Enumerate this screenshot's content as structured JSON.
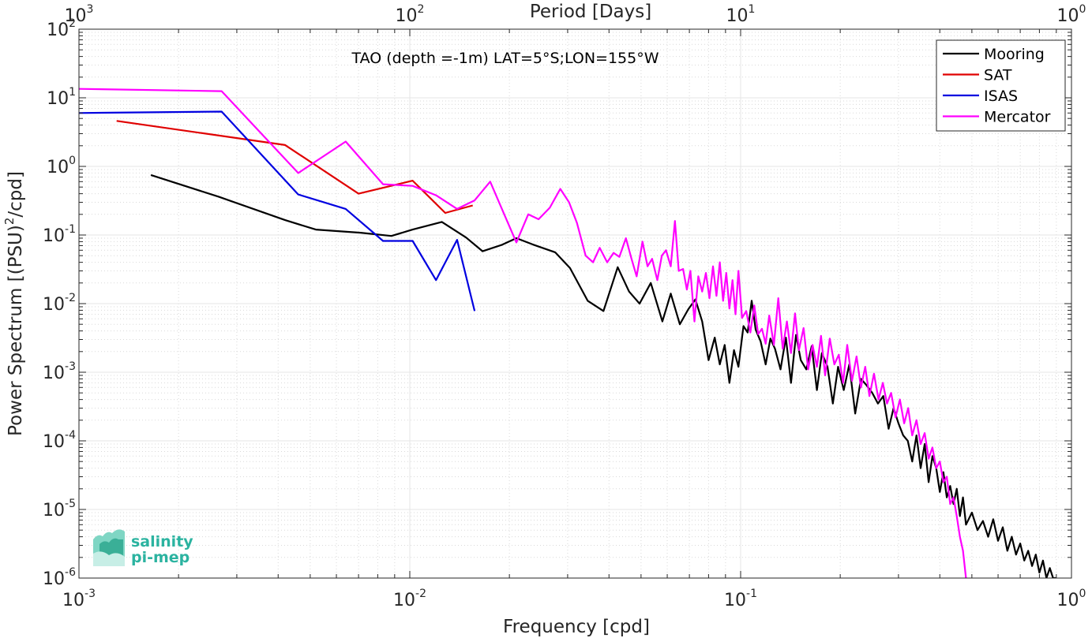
{
  "chart_data": {
    "type": "line",
    "title": "TAO (depth =-1m) LAT=5°S;LON=155°W",
    "xlabel": "Frequency [cpd]",
    "ylabel": "Power Spectrum [(PSU)",
    "ylabel_sup": "2",
    "ylabel_tail": "/cpd]",
    "top_xlabel": "Period [Days]",
    "x_scale": "log",
    "y_scale": "log",
    "xlim": [
      0.001,
      1
    ],
    "ylim": [
      1e-06,
      100
    ],
    "grid": true,
    "legend_position": "top-right",
    "x_ticks": [
      {
        "base": "10",
        "exp": "-3",
        "value": 0.001
      },
      {
        "base": "10",
        "exp": "-2",
        "value": 0.01
      },
      {
        "base": "10",
        "exp": "-1",
        "value": 0.1
      },
      {
        "base": "10",
        "exp": "0",
        "value": 1
      }
    ],
    "top_ticks": [
      {
        "base": "10",
        "exp": "3",
        "value": 0.001
      },
      {
        "base": "10",
        "exp": "2",
        "value": 0.01
      },
      {
        "base": "10",
        "exp": "1",
        "value": 0.1
      },
      {
        "base": "10",
        "exp": "0",
        "value": 1
      }
    ],
    "y_ticks": [
      {
        "base": "10",
        "exp": "2",
        "value": 100
      },
      {
        "base": "10",
        "exp": "1",
        "value": 10
      },
      {
        "base": "10",
        "exp": "0",
        "value": 1
      },
      {
        "base": "10",
        "exp": "-1",
        "value": 0.1
      },
      {
        "base": "10",
        "exp": "-2",
        "value": 0.01
      },
      {
        "base": "10",
        "exp": "-3",
        "value": 0.001
      },
      {
        "base": "10",
        "exp": "-4",
        "value": 0.0001
      },
      {
        "base": "10",
        "exp": "-5",
        "value": 1e-05
      },
      {
        "base": "10",
        "exp": "-6",
        "value": 1e-06
      }
    ],
    "series": [
      {
        "name": "Mooring",
        "color": "#000000",
        "x": [
          0.00165,
          0.00265,
          0.0042,
          0.0052,
          0.0071,
          0.0088,
          0.0102,
          0.0125,
          0.0148,
          0.0166,
          0.019,
          0.021,
          0.0235,
          0.0275,
          0.0305,
          0.0345,
          0.0385,
          0.0425,
          0.046,
          0.0495,
          0.0535,
          0.058,
          0.0615,
          0.0655,
          0.0695,
          0.073,
          0.0765,
          0.08,
          0.0835,
          0.0865,
          0.0895,
          0.0925,
          0.0955,
          0.0985,
          0.102,
          0.105,
          0.108,
          0.111,
          0.115,
          0.119,
          0.123,
          0.127,
          0.132,
          0.137,
          0.142,
          0.147,
          0.152,
          0.158,
          0.164,
          0.17,
          0.176,
          0.183,
          0.19,
          0.197,
          0.205,
          0.213,
          0.222,
          0.231,
          0.24,
          0.25,
          0.26,
          0.27,
          0.28,
          0.29,
          0.3,
          0.31,
          0.32,
          0.33,
          0.34,
          0.35,
          0.36,
          0.37,
          0.38,
          0.39,
          0.4,
          0.41,
          0.42,
          0.43,
          0.44,
          0.45,
          0.46,
          0.47,
          0.48,
          0.5,
          0.52,
          0.54,
          0.56,
          0.58,
          0.6,
          0.62,
          0.64,
          0.66,
          0.68,
          0.7,
          0.72,
          0.74,
          0.76,
          0.78,
          0.8,
          0.82,
          0.84,
          0.86,
          0.88,
          0.9
        ],
        "y": [
          0.75,
          0.36,
          0.165,
          0.12,
          0.108,
          0.097,
          0.12,
          0.155,
          0.092,
          0.058,
          0.072,
          0.09,
          0.073,
          0.056,
          0.033,
          0.011,
          0.0078,
          0.034,
          0.015,
          0.01,
          0.02,
          0.0055,
          0.014,
          0.005,
          0.0083,
          0.0115,
          0.0055,
          0.0015,
          0.0032,
          0.0013,
          0.0025,
          0.0007,
          0.0021,
          0.0012,
          0.0047,
          0.0038,
          0.011,
          0.0042,
          0.0028,
          0.0013,
          0.0031,
          0.0022,
          0.0011,
          0.0032,
          0.0007,
          0.0035,
          0.0015,
          0.0011,
          0.0024,
          0.00055,
          0.0019,
          0.0012,
          0.00035,
          0.0012,
          0.00055,
          0.0013,
          0.00025,
          0.0008,
          0.00065,
          0.0005,
          0.00035,
          0.00045,
          0.00015,
          0.0003,
          0.00018,
          0.00012,
          0.0001,
          5e-05,
          0.00012,
          4e-05,
          9e-05,
          2.5e-05,
          6e-05,
          4e-05,
          1.8e-05,
          3.5e-05,
          1.5e-05,
          2.2e-05,
          1.2e-05,
          2e-05,
          8e-06,
          1.5e-05,
          6e-06,
          9e-06,
          5e-06,
          6.8e-06,
          4e-06,
          7.2e-06,
          3.5e-06,
          5.5e-06,
          2.5e-06,
          4e-06,
          2.2e-06,
          3.2e-06,
          1.8e-06,
          2.5e-06,
          1.5e-06,
          2.2e-06,
          1.2e-06,
          1.8e-06,
          1e-06,
          1.4e-06,
          1e-06,
          1e-06
        ]
      },
      {
        "name": "SAT",
        "color": "#e00000",
        "x": [
          0.0013,
          0.0042,
          0.007,
          0.0102,
          0.0128,
          0.0155
        ],
        "y": [
          4.6,
          2.05,
          0.4,
          0.62,
          0.21,
          0.27
        ]
      },
      {
        "name": "ISAS",
        "color": "#0000e0",
        "x": [
          0.001,
          0.0027,
          0.0046,
          0.0064,
          0.0083,
          0.0102,
          0.012,
          0.0139,
          0.0157
        ],
        "y": [
          6,
          6.3,
          0.39,
          0.24,
          0.082,
          0.082,
          0.022,
          0.085,
          0.0078
        ]
      },
      {
        "name": "Mercator",
        "color": "#ff00ff",
        "x": [
          0.001,
          0.0027,
          0.0046,
          0.0064,
          0.0083,
          0.0102,
          0.012,
          0.0139,
          0.0157,
          0.0175,
          0.0193,
          0.021,
          0.0228,
          0.0245,
          0.0265,
          0.0285,
          0.0303,
          0.032,
          0.034,
          0.0358,
          0.0375,
          0.0395,
          0.0413,
          0.043,
          0.045,
          0.0468,
          0.0485,
          0.0505,
          0.0523,
          0.054,
          0.056,
          0.0578,
          0.0595,
          0.0615,
          0.0633,
          0.065,
          0.067,
          0.0688,
          0.0705,
          0.0725,
          0.0745,
          0.0765,
          0.0785,
          0.0805,
          0.0825,
          0.0845,
          0.0865,
          0.0885,
          0.0905,
          0.0925,
          0.0945,
          0.0965,
          0.0985,
          0.101,
          0.104,
          0.107,
          0.11,
          0.113,
          0.116,
          0.119,
          0.122,
          0.126,
          0.13,
          0.134,
          0.138,
          0.142,
          0.146,
          0.15,
          0.155,
          0.16,
          0.165,
          0.17,
          0.175,
          0.18,
          0.186,
          0.192,
          0.198,
          0.204,
          0.21,
          0.217,
          0.224,
          0.231,
          0.238,
          0.245,
          0.253,
          0.261,
          0.269,
          0.277,
          0.285,
          0.294,
          0.303,
          0.312,
          0.321,
          0.33,
          0.34,
          0.35,
          0.36,
          0.37,
          0.38,
          0.39,
          0.4,
          0.41,
          0.42,
          0.43,
          0.44,
          0.45,
          0.46,
          0.47,
          0.48
        ],
        "y": [
          13.5,
          12.5,
          0.8,
          2.3,
          0.55,
          0.52,
          0.38,
          0.24,
          0.32,
          0.6,
          0.2,
          0.078,
          0.2,
          0.17,
          0.25,
          0.47,
          0.3,
          0.15,
          0.05,
          0.04,
          0.065,
          0.04,
          0.055,
          0.048,
          0.09,
          0.045,
          0.025,
          0.08,
          0.035,
          0.045,
          0.022,
          0.05,
          0.06,
          0.035,
          0.16,
          0.03,
          0.032,
          0.016,
          0.03,
          0.0055,
          0.025,
          0.015,
          0.028,
          0.012,
          0.035,
          0.013,
          0.04,
          0.011,
          0.028,
          0.0085,
          0.022,
          0.007,
          0.03,
          0.0062,
          0.0078,
          0.0038,
          0.0094,
          0.0036,
          0.0043,
          0.0026,
          0.0067,
          0.0025,
          0.012,
          0.0022,
          0.0055,
          0.0019,
          0.0072,
          0.0021,
          0.0044,
          0.0011,
          0.0025,
          0.0012,
          0.0034,
          0.0009,
          0.0031,
          0.0013,
          0.0018,
          0.0007,
          0.0025,
          0.00075,
          0.0017,
          0.0006,
          0.0012,
          0.00045,
          0.00095,
          0.0004,
          0.0007,
          0.00035,
          0.0005,
          0.00022,
          0.0004,
          0.00018,
          0.0003,
          0.00012,
          0.0002,
          9e-05,
          0.00013,
          5.5e-05,
          8e-05,
          4e-05,
          5e-05,
          2.5e-05,
          3e-05,
          1.2e-05,
          1.5e-05,
          8e-06,
          4e-06,
          2.5e-06,
          1e-06
        ]
      }
    ]
  },
  "logo": {
    "line1": "salinity",
    "line2": "pi-mep"
  }
}
